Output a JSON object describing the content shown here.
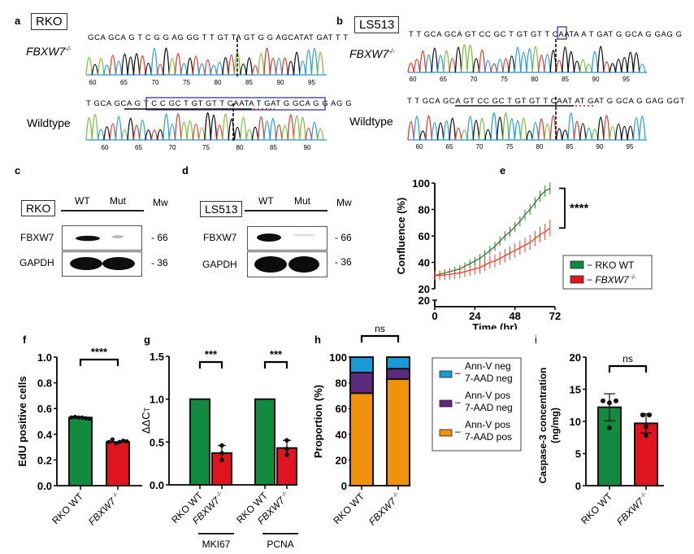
{
  "panels": {
    "a": {
      "letter": "a",
      "cell_line": "RKO",
      "mutant_label": "FBXW7",
      "mutant_sup": "-/-",
      "wildtype_label": "Wildtype",
      "mutant_sequence": "GCA GCA G T C G G AG GG T T GT TA GT G G AGCATAT GAT T T",
      "wildtype_sequence": "T GCA GCA G T C C GC T GT GT T CAATA T GAT G GCA G G AG G",
      "mutant_ticks": [
        "60",
        "65",
        "70",
        "75",
        "80",
        "85",
        "90",
        "95"
      ],
      "wildtype_ticks": [
        "60",
        "65",
        "70",
        "75",
        "80",
        "85",
        "90"
      ]
    },
    "b": {
      "letter": "b",
      "cell_line": "LS513",
      "mutant_label": "FBXW7",
      "mutant_sup": "-/-",
      "wildtype_label": "Wildtype",
      "mutant_sequence": "T T GCA GCA GT CC GC T GT GT T CAATA A T GAT G GCA G GAG G",
      "wildtype_sequence": "T T GCA GCA GT CC GC T GT GT T CAAT AT GAT G GCA G GAG GGT",
      "mutant_ticks": [
        "60",
        "65",
        "70",
        "75",
        "80",
        "85",
        "90",
        "95"
      ],
      "wildtype_ticks": [
        "60",
        "65",
        "70",
        "75",
        "80",
        "85",
        "90",
        "95"
      ]
    },
    "c": {
      "letter": "c",
      "cell_line": "RKO",
      "lanes": [
        "WT",
        "Mut"
      ],
      "mw_header": "Mw",
      "bands": [
        {
          "protein": "FBXW7",
          "mw": "- 66"
        },
        {
          "protein": "GAPDH",
          "mw": "- 36"
        }
      ]
    },
    "d": {
      "letter": "d",
      "cell_line": "LS513",
      "lanes": [
        "WT",
        "Mut"
      ],
      "mw_header": "Mw",
      "bands": [
        {
          "protein": "FBXW7",
          "mw": "- 66"
        },
        {
          "protein": "GAPDH",
          "mw": "- 36"
        }
      ]
    },
    "e": {
      "letter": "e"
    },
    "f": {
      "letter": "f"
    },
    "g": {
      "letter": "g"
    },
    "h": {
      "letter": "h"
    },
    "i": {
      "letter": "i"
    }
  },
  "colors": {
    "green": "#128a3f",
    "red": "#e0141f",
    "green_line": "#2e7d32",
    "red_line": "#e8412c",
    "cyan": "#1a9ad6",
    "purple": "#5c2a7a",
    "orange": "#f0920e"
  },
  "chart_data": [
    {
      "panel": "e",
      "type": "line",
      "xlabel": "Time (hr)",
      "ylabel": "Confluence (%)",
      "x_ticks": [
        "0",
        "24",
        "48",
        "72"
      ],
      "y_ticks": [
        "20",
        "40",
        "60",
        "80",
        "100"
      ],
      "y_break_label": "20",
      "xlim": [
        0,
        72
      ],
      "ylim": [
        20,
        100
      ],
      "significance": "****",
      "legend": [
        "RKO WT",
        "FBXW7 -/-"
      ],
      "legend_position": "right",
      "series": [
        {
          "name": "RKO WT",
          "x": [
            0,
            3,
            6,
            9,
            12,
            15,
            18,
            21,
            24,
            27,
            30,
            33,
            36,
            39,
            42,
            45,
            48,
            51,
            54,
            57,
            60,
            63,
            66,
            69
          ],
          "y": [
            30,
            31,
            32,
            33,
            34,
            35,
            37,
            39,
            41,
            43,
            46,
            49,
            52,
            56,
            60,
            63,
            67,
            71,
            76,
            80,
            85,
            90,
            94,
            96
          ],
          "err": 2.5
        },
        {
          "name": "FBXW7 -/-",
          "x": [
            0,
            3,
            6,
            9,
            12,
            15,
            18,
            21,
            24,
            27,
            30,
            33,
            36,
            39,
            42,
            45,
            48,
            51,
            54,
            57,
            60,
            63,
            66,
            69
          ],
          "y": [
            30,
            30,
            30.5,
            31,
            31.5,
            32,
            33,
            34,
            35,
            36,
            38,
            40,
            41,
            43,
            45,
            47,
            49,
            51,
            53,
            55,
            58,
            61,
            63,
            66
          ],
          "err": 3.5
        }
      ]
    },
    {
      "panel": "f",
      "type": "bar",
      "ylabel": "EdU positive cells",
      "categories": [
        "RKO WT",
        "FBXW7 -/-"
      ],
      "values": [
        0.53,
        0.34
      ],
      "points": [
        [
          0.53,
          0.535,
          0.53,
          0.53,
          0.525,
          0.52
        ],
        [
          0.34,
          0.36,
          0.33,
          0.34,
          0.35,
          0.345
        ]
      ],
      "y_ticks": [
        "0.0",
        "0.2",
        "0.4",
        "0.6",
        "0.8",
        "1.0"
      ],
      "ylim": [
        0,
        1.0
      ],
      "significance": "****"
    },
    {
      "panel": "g",
      "type": "bar",
      "ylabel": "ΔΔCT",
      "categories": [
        "RKO WT",
        "FBXW7 -/-",
        "RKO WT",
        "FBXW7 -/-"
      ],
      "groups": [
        "MKI67",
        "PCNA"
      ],
      "values": [
        1.0,
        0.37,
        1.0,
        0.43
      ],
      "errors": [
        0,
        0.09,
        0,
        0.09
      ],
      "points": [
        [],
        [
          0.46,
          0.37,
          0.29
        ],
        [],
        [
          0.52,
          0.42,
          0.35
        ]
      ],
      "y_ticks": [
        "0.0",
        "0.5",
        "1.0",
        "1.5"
      ],
      "ylim": [
        0,
        1.5
      ],
      "significance": [
        "***",
        "***"
      ]
    },
    {
      "panel": "h",
      "type": "bar",
      "stacked": true,
      "ylabel": "Proportion (%)",
      "categories": [
        "RKO WT",
        "FBXW7 -/-"
      ],
      "y_ticks": [
        "0",
        "20",
        "40",
        "60",
        "80",
        "100"
      ],
      "ylim": [
        0,
        100
      ],
      "significance": "ns",
      "series": [
        {
          "name": "Ann-V pos 7-AAD pos",
          "label_line1": "Ann-V pos",
          "label_line2": "7-AAD pos",
          "values": [
            72,
            83
          ]
        },
        {
          "name": "Ann-V pos 7-AAD neg",
          "label_line1": "Ann-V pos",
          "label_line2": "7-AAD neg",
          "values": [
            16,
            8
          ]
        },
        {
          "name": "Ann-V neg 7-AAD neg",
          "label_line1": "Ann-V neg",
          "label_line2": "7-AAD neg",
          "values": [
            12,
            9
          ]
        }
      ]
    },
    {
      "panel": "i",
      "type": "bar",
      "ylabel": "Caspase-3 concentration",
      "ylabel2": "(ng/mg)",
      "categories": [
        "RKO WT",
        "FBXW7 -/-"
      ],
      "values": [
        12.2,
        9.7
      ],
      "errors": [
        2.1,
        1.5
      ],
      "points": [
        [
          13.2,
          12.9,
          13.2,
          9.0
        ],
        [
          11.0,
          11.0,
          9.2,
          7.8
        ]
      ],
      "y_ticks": [
        "0",
        "5",
        "10",
        "15",
        "20"
      ],
      "ylim": [
        0,
        20
      ],
      "significance": "ns"
    }
  ],
  "cat_labels": {
    "wt": "RKO WT",
    "mut": "FBXW7",
    "mut_sup": "-/-"
  }
}
